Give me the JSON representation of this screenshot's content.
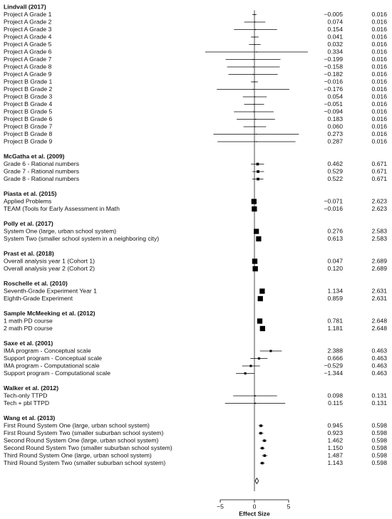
{
  "chart_data": {
    "type": "forest",
    "xlabel": "Effect Size",
    "xlim": [
      -5,
      5
    ],
    "xticks": [
      {
        "value": -5,
        "label": "−5"
      },
      0,
      5
    ],
    "reference_line": 0,
    "color": "#000000",
    "studies": [
      {
        "name": "Lindvall (2017)",
        "rows": [
          {
            "label": "Project A Grade 1",
            "estimate": -0.005,
            "estimate_label": "−0.005",
            "weight": 0.016,
            "ci": [
              -0.3,
              0.3
            ]
          },
          {
            "label": "Project A Grade 2",
            "estimate": 0.074,
            "estimate_label": "0.074",
            "weight": 0.016,
            "ci": [
              -1.5,
              1.6
            ]
          },
          {
            "label": "Project A Grade 3",
            "estimate": 0.154,
            "estimate_label": "0.154",
            "weight": 0.016,
            "ci": [
              -3.0,
              3.3
            ]
          },
          {
            "label": "Project A Grade 4",
            "estimate": 0.041,
            "estimate_label": "0.041",
            "weight": 0.016,
            "ci": [
              -0.5,
              0.6
            ]
          },
          {
            "label": "Project A Grade 5",
            "estimate": 0.032,
            "estimate_label": "0.032",
            "weight": 0.016,
            "ci": [
              -0.8,
              0.9
            ]
          },
          {
            "label": "Project A Grade 6",
            "estimate": 0.334,
            "estimate_label": "0.334",
            "weight": 0.016,
            "ci": [
              -7.2,
              7.8
            ]
          },
          {
            "label": "Project A Grade 7",
            "estimate": -0.199,
            "estimate_label": "−0.199",
            "weight": 0.016,
            "ci": [
              -4.2,
              3.8
            ]
          },
          {
            "label": "Project A Grade 8",
            "estimate": -0.158,
            "estimate_label": "−0.158",
            "weight": 0.016,
            "ci": [
              -4.0,
              3.7
            ]
          },
          {
            "label": "Project A Grade 9",
            "estimate": -0.182,
            "estimate_label": "−0.182",
            "weight": 0.016,
            "ci": [
              -3.8,
              3.4
            ]
          },
          {
            "label": "Project B Grade 1",
            "estimate": -0.016,
            "estimate_label": "−0.016",
            "weight": 0.016,
            "ci": [
              -0.5,
              0.5
            ]
          },
          {
            "label": "Project B Grade 2",
            "estimate": -0.176,
            "estimate_label": "−0.176",
            "weight": 0.016,
            "ci": [
              -5.5,
              5.1
            ]
          },
          {
            "label": "Project B Grade 3",
            "estimate": 0.054,
            "estimate_label": "0.054",
            "weight": 0.016,
            "ci": [
              -1.7,
              1.8
            ]
          },
          {
            "label": "Project B Grade 4",
            "estimate": -0.051,
            "estimate_label": "−0.051",
            "weight": 0.016,
            "ci": [
              -1.5,
              1.4
            ]
          },
          {
            "label": "Project B Grade 5",
            "estimate": -0.094,
            "estimate_label": "−0.094",
            "weight": 0.016,
            "ci": [
              -3.0,
              2.8
            ]
          },
          {
            "label": "Project B Grade 6",
            "estimate": 0.183,
            "estimate_label": "0.183",
            "weight": 0.016,
            "ci": [
              -2.6,
              3.0
            ]
          },
          {
            "label": "Project B Grade 7",
            "estimate": 0.06,
            "estimate_label": "0.060",
            "weight": 0.016,
            "ci": [
              -1.6,
              1.7
            ]
          },
          {
            "label": "Project B Grade 8",
            "estimate": 0.273,
            "estimate_label": "0.273",
            "weight": 0.016,
            "ci": [
              -6.0,
              6.5
            ]
          },
          {
            "label": "Project B Grade 9",
            "estimate": 0.287,
            "estimate_label": "0.287",
            "weight": 0.016,
            "ci": [
              -5.4,
              6.0
            ]
          }
        ]
      },
      {
        "name": "McGatha et al. (2009)",
        "rows": [
          {
            "label": "Grade 6 - Rational numbers",
            "estimate": 0.462,
            "estimate_label": "0.462",
            "weight": 0.671,
            "ci": [
              -0.5,
              1.4
            ]
          },
          {
            "label": "Grade 7 - Rational numbers",
            "estimate": 0.529,
            "estimate_label": "0.529",
            "weight": 0.671,
            "ci": [
              -0.3,
              1.4
            ]
          },
          {
            "label": "Grade 8 - Rational numbers",
            "estimate": 0.522,
            "estimate_label": "0.522",
            "weight": 0.671,
            "ci": [
              -0.3,
              1.3
            ]
          }
        ]
      },
      {
        "name": "Piasta et al. (2015)",
        "rows": [
          {
            "label": "Applied Problems",
            "estimate": -0.071,
            "estimate_label": "−0.071",
            "weight": 2.623,
            "ci": [
              -0.2,
              0.1
            ]
          },
          {
            "label": "TEAM (Tools for Early Assessment in Math",
            "estimate": -0.016,
            "estimate_label": "−0.016",
            "weight": 2.623,
            "ci": [
              -0.2,
              0.2
            ]
          }
        ]
      },
      {
        "name": "Polly et al. (2017)",
        "rows": [
          {
            "label": "System One (large, urban school system)",
            "estimate": 0.276,
            "estimate_label": "0.276",
            "weight": 2.583,
            "ci": [
              0.1,
              0.5
            ]
          },
          {
            "label": "System Two (smaller school system in a neighboring city)",
            "estimate": 0.613,
            "estimate_label": "0.613",
            "weight": 2.583,
            "ci": [
              0.4,
              0.8
            ]
          }
        ]
      },
      {
        "name": "Prast et al. (2018)",
        "rows": [
          {
            "label": "Overall analysis year 1 (Cohort 1)",
            "estimate": 0.047,
            "estimate_label": "0.047",
            "weight": 2.689,
            "ci": [
              -0.1,
              0.2
            ]
          },
          {
            "label": "Overall analysis year 2 (Cohort 2)",
            "estimate": 0.12,
            "estimate_label": "0.120",
            "weight": 2.689,
            "ci": [
              0.0,
              0.3
            ]
          }
        ]
      },
      {
        "name": "Roschelle et al. (2010)",
        "rows": [
          {
            "label": "Seventh-Grade Experiment Year 1",
            "estimate": 1.134,
            "estimate_label": "1.134",
            "weight": 2.631,
            "ci": [
              1.0,
              1.3
            ]
          },
          {
            "label": "Eighth-Grade Experiment",
            "estimate": 0.859,
            "estimate_label": "0.859",
            "weight": 2.631,
            "ci": [
              0.7,
              1.0
            ]
          }
        ]
      },
      {
        "name": "Sample McMeeking et al. (2012)",
        "rows": [
          {
            "label": "1 math PD course",
            "estimate": 0.781,
            "estimate_label": "0.781",
            "weight": 2.648,
            "ci": [
              0.6,
              0.9
            ]
          },
          {
            "label": "2 math PD course",
            "estimate": 1.181,
            "estimate_label": "1.181",
            "weight": 2.648,
            "ci": [
              1.0,
              1.3
            ]
          }
        ]
      },
      {
        "name": "Saxe et al. (2001)",
        "rows": [
          {
            "label": "IMA program - Conceptual scale",
            "estimate": 2.388,
            "estimate_label": "2.388",
            "weight": 0.463,
            "ci": [
              0.8,
              4.0
            ]
          },
          {
            "label": "Support program - Conceptual scale",
            "estimate": 0.666,
            "estimate_label": "0.666",
            "weight": 0.463,
            "ci": [
              -0.6,
              1.9
            ]
          },
          {
            "label": "IMA program - Computational scale",
            "estimate": -0.529,
            "estimate_label": "−0.529",
            "weight": 0.463,
            "ci": [
              -1.8,
              0.8
            ]
          },
          {
            "label": "Support program - Computational scale",
            "estimate": -1.344,
            "estimate_label": "−1.344",
            "weight": 0.463,
            "ci": [
              -2.7,
              0.0
            ]
          }
        ]
      },
      {
        "name": "Walker et al. (2012)",
        "rows": [
          {
            "label": "Tech-only TTPD",
            "estimate": 0.098,
            "estimate_label": "0.098",
            "weight": 0.131,
            "ci": [
              -3.1,
              3.3
            ]
          },
          {
            "label": "Tech + pbl TTPD",
            "estimate": 0.115,
            "estimate_label": "0.115",
            "weight": 0.131,
            "ci": [
              -4.3,
              4.5
            ]
          }
        ]
      },
      {
        "name": "Wang et al. (2013)",
        "rows": [
          {
            "label": "First Round System One (large, urban school system)",
            "estimate": 0.945,
            "estimate_label": "0.945",
            "weight": 0.598,
            "ci": [
              0.6,
              1.3
            ]
          },
          {
            "label": "First Round System Two (smaller suburban school system)",
            "estimate": 0.923,
            "estimate_label": "0.923",
            "weight": 0.598,
            "ci": [
              0.6,
              1.3
            ]
          },
          {
            "label": "Second Round System One (large, urban school system)",
            "estimate": 1.462,
            "estimate_label": "1.462",
            "weight": 0.598,
            "ci": [
              1.1,
              1.8
            ]
          },
          {
            "label": "Second Round System Two (smaller suburban school system)",
            "estimate": 1.15,
            "estimate_label": "1.150",
            "weight": 0.598,
            "ci": [
              0.8,
              1.5
            ]
          },
          {
            "label": "Third Round System One (large, urban school system)",
            "estimate": 1.487,
            "estimate_label": "1.487",
            "weight": 0.598,
            "ci": [
              1.1,
              1.9
            ]
          },
          {
            "label": "Third Round System Two (smaller suburban school system)",
            "estimate": 1.143,
            "estimate_label": "1.143",
            "weight": 0.598,
            "ci": [
              0.8,
              1.5
            ]
          }
        ]
      }
    ],
    "summary": {
      "estimate": 0.35,
      "ci": [
        0.1,
        0.6
      ]
    }
  }
}
